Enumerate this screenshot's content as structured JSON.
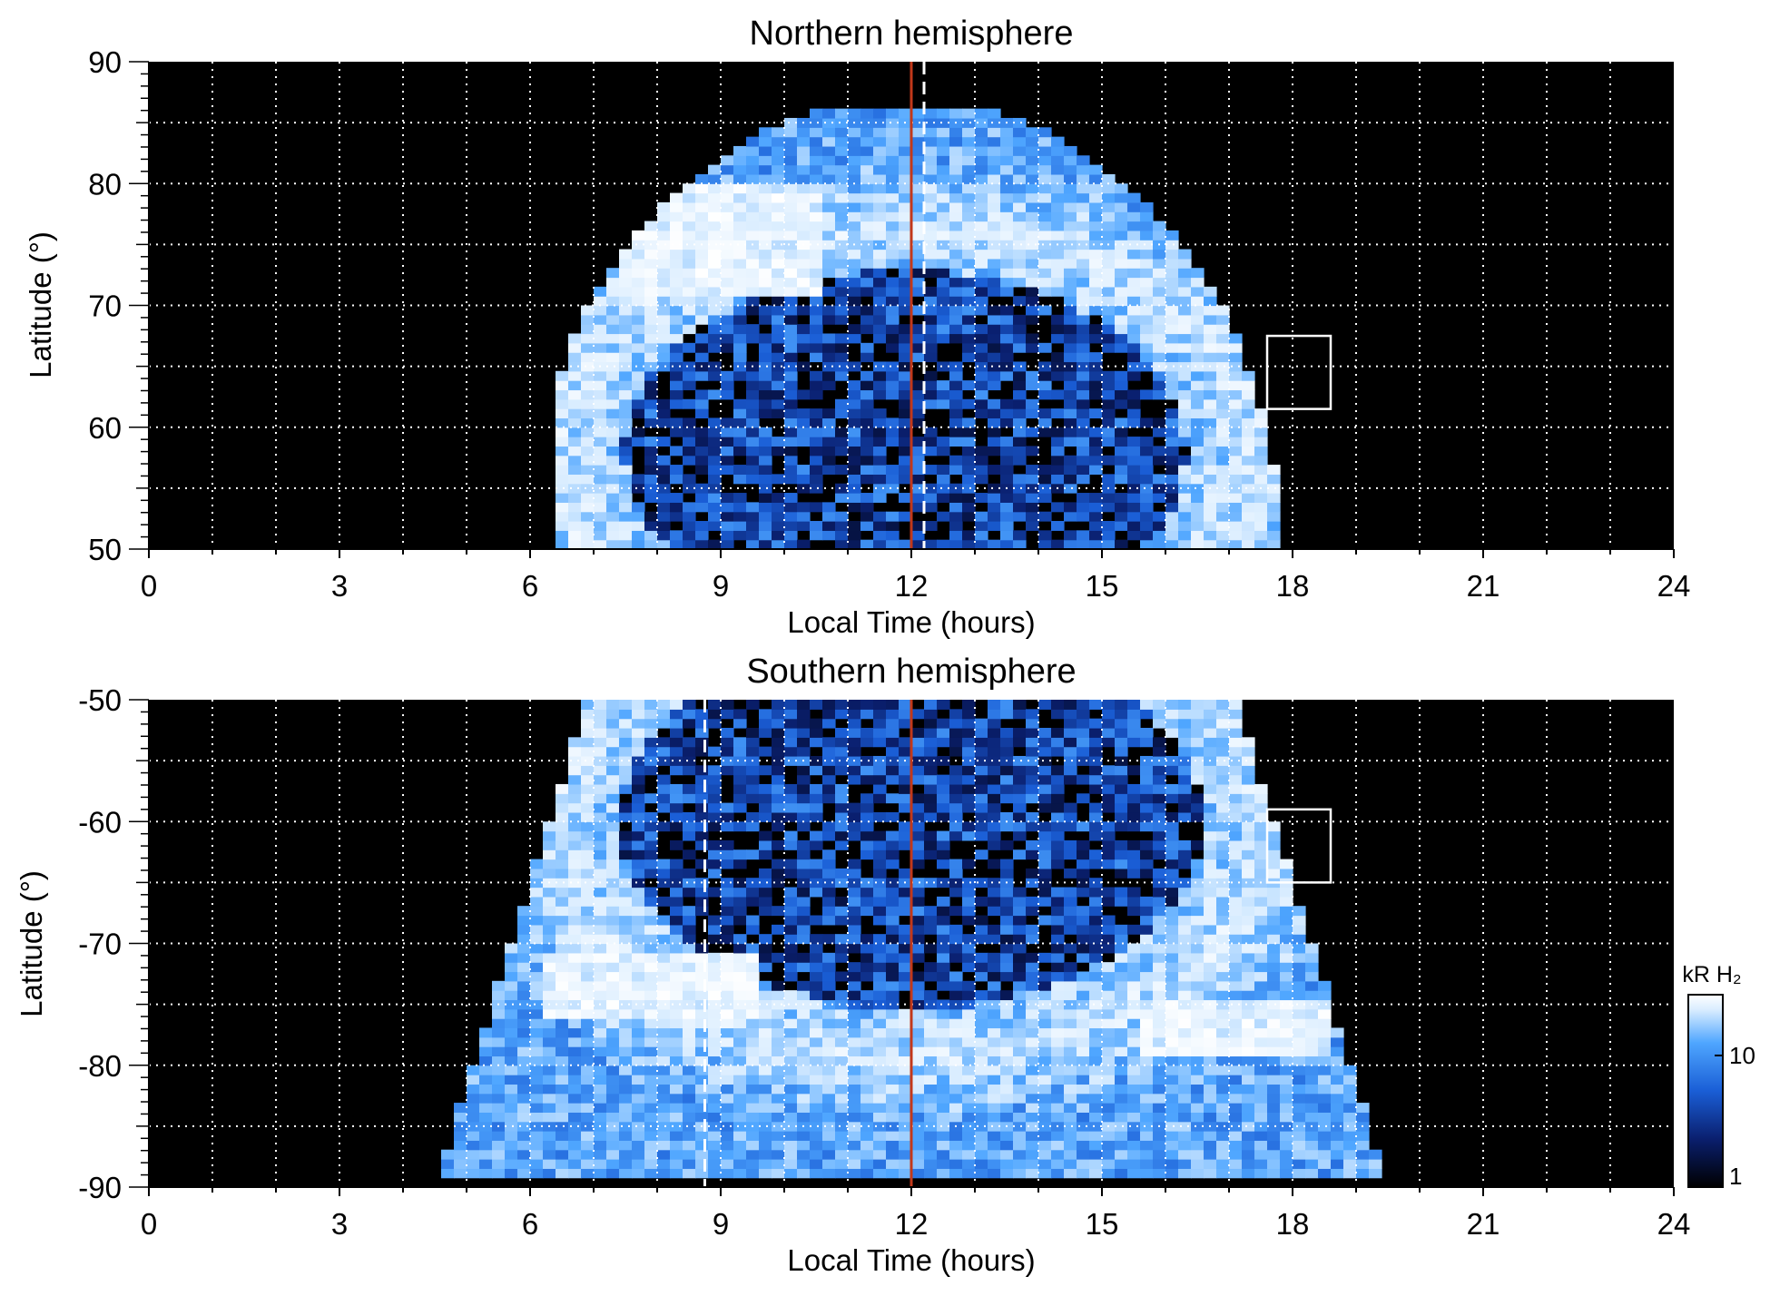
{
  "figure": {
    "panels": [
      {
        "title": "Northern hemisphere",
        "xlabel": "Local Time (hours)",
        "ylabel": "Latitude (°)"
      },
      {
        "title": "Southern hemisphere",
        "xlabel": "Local Time (hours)",
        "ylabel": "Latitude (°)"
      }
    ],
    "colorbar": {
      "label": "kR H₂",
      "ticks": [
        "10",
        "1"
      ]
    }
  },
  "chart_data": [
    {
      "type": "heatmap",
      "title": "Northern hemisphere",
      "xlabel": "Local Time (hours)",
      "ylabel": "Latitude (°)",
      "xlim": [
        0,
        24
      ],
      "ylim": [
        50,
        90
      ],
      "x_ticks": [
        0,
        3,
        6,
        9,
        12,
        15,
        18,
        21,
        24
      ],
      "y_ticks": [
        50,
        60,
        70,
        80,
        90
      ],
      "grid": true,
      "colorscale": [
        "#000000",
        "#0a1f6e",
        "#1a5ed6",
        "#4fa6ff",
        "#d8ecff",
        "#ffffff"
      ],
      "coverage": {
        "lt_start": 6.4,
        "lt_end": 17.7,
        "max_latitude": 86.5
      },
      "auroral_oval": {
        "center_lt": 11.9,
        "center_lat": 58,
        "lt_half_width": 5.2,
        "lat_half_height": 17.5
      },
      "bright_region": {
        "lt_range": [
          7.5,
          10.5
        ],
        "lat_range": [
          71,
          80
        ]
      },
      "noon_line_lt": 12,
      "dashed_line_lt": 12.2,
      "box": {
        "lt_range": [
          17.6,
          18.6
        ],
        "lat_range": [
          61.5,
          67.5
        ]
      },
      "colors": {
        "noon_line": "#c2381a",
        "grid": "#ffffff",
        "background": "#000000"
      }
    },
    {
      "type": "heatmap",
      "title": "Southern hemisphere",
      "xlabel": "Local Time (hours)",
      "ylabel": "Latitude (°)",
      "xlim": [
        0,
        24
      ],
      "ylim": [
        -90,
        -50
      ],
      "x_ticks": [
        0,
        3,
        6,
        9,
        12,
        15,
        18,
        21,
        24
      ],
      "y_ticks": [
        -50,
        -60,
        -70,
        -80,
        -90
      ],
      "grid": true,
      "colorscale": [
        "#000000",
        "#0a1f6e",
        "#1a5ed6",
        "#4fa6ff",
        "#d8ecff",
        "#ffffff"
      ],
      "coverage": {
        "lt_start": 4.5,
        "lt_end": 20,
        "min_latitude": -89
      },
      "auroral_oval": {
        "center_lt": 12,
        "center_lat": -60,
        "lt_half_width": 5.4,
        "lat_half_height": 18
      },
      "bright_regions": [
        {
          "lt_range": [
            6.2,
            9.5
          ],
          "lat_range": [
            -76,
            -71
          ]
        },
        {
          "lt_range": [
            15.6,
            18.5
          ],
          "lat_range": [
            -79,
            -75
          ]
        }
      ],
      "noon_line_lt": 12,
      "dashed_line_lt": 8.75,
      "box": {
        "lt_range": [
          17.6,
          18.6
        ],
        "lat_range": [
          -65,
          -59
        ]
      },
      "colors": {
        "noon_line": "#c2381a",
        "grid": "#ffffff",
        "background": "#000000"
      }
    }
  ]
}
